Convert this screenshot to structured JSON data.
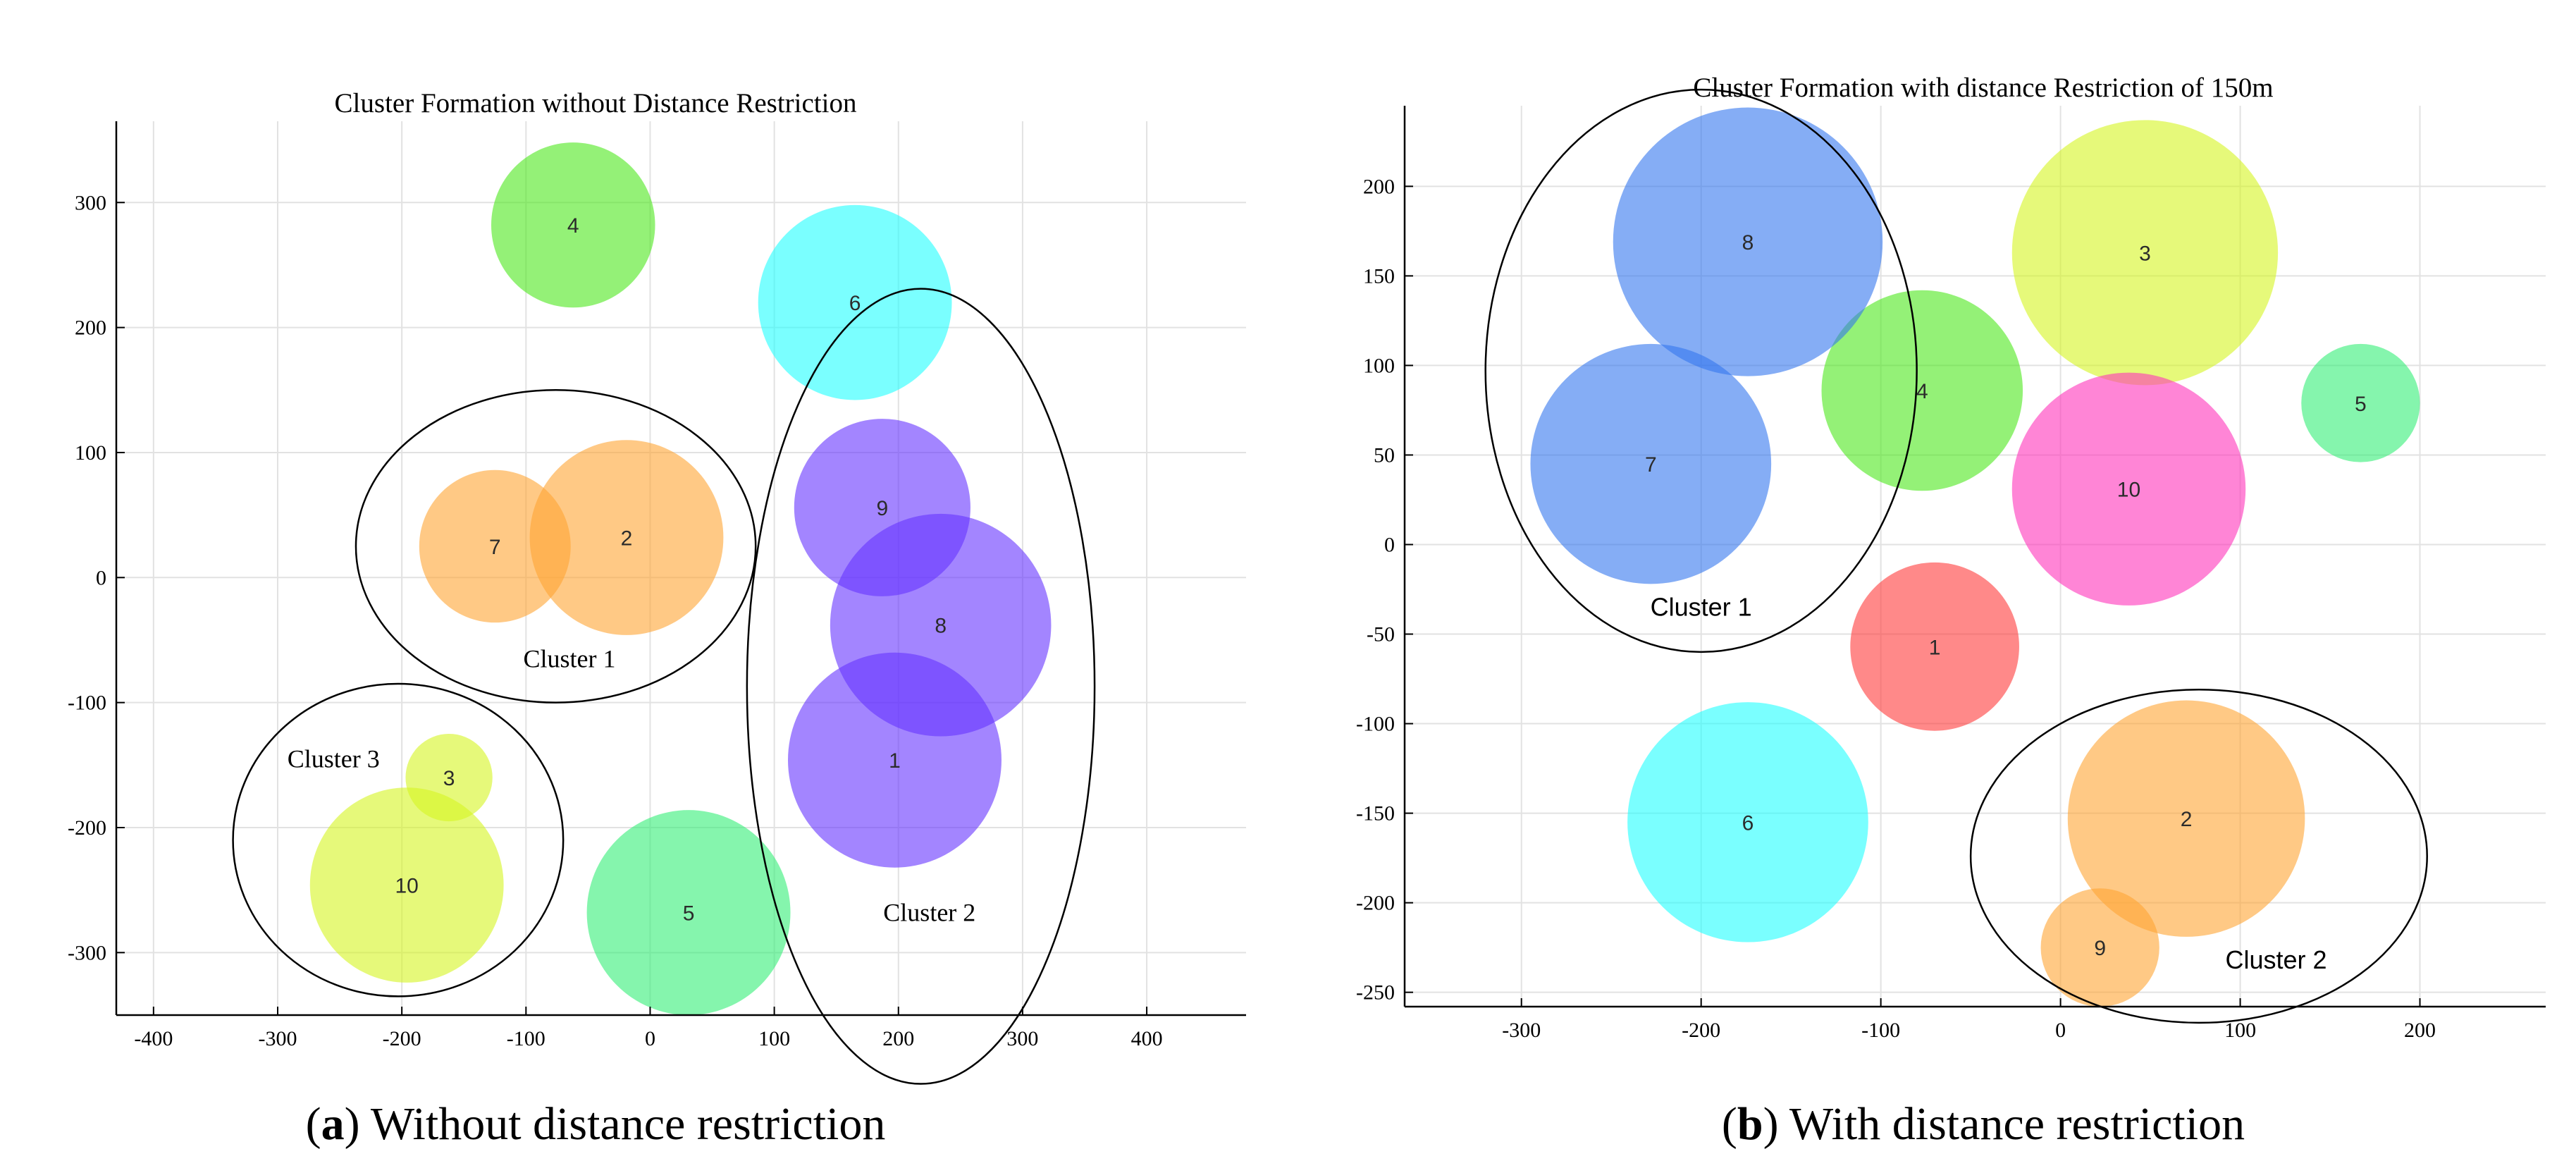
{
  "chart_data": [
    {
      "type": "scatter",
      "title": "Cluster Formation without Distance Restriction",
      "caption": {
        "letter": "a",
        "text": "Without distance restriction"
      },
      "xlim": [
        -430,
        480
      ],
      "ylim": [
        -350,
        365
      ],
      "xticks": [
        -400,
        -300,
        -200,
        -100,
        0,
        100,
        200,
        300,
        400
      ],
      "yticks": [
        -300,
        -200,
        -100,
        0,
        100,
        200,
        300
      ],
      "xticklabels": [
        "-400",
        "-300",
        "-200",
        "-100",
        "0",
        "100",
        "200",
        "300",
        "400"
      ],
      "yticklabels": [
        "-300",
        "-200",
        "-100",
        "0",
        "100",
        "200",
        "300"
      ],
      "grid": true,
      "nodes": [
        {
          "id": "1",
          "x": 197,
          "y": -146,
          "r": 86,
          "color": "#6633ff"
        },
        {
          "id": "2",
          "x": -19,
          "y": 32,
          "r": 78,
          "color": "#ffa533"
        },
        {
          "id": "3",
          "x": -162,
          "y": -160,
          "r": 35,
          "color": "#d5f522"
        },
        {
          "id": "4",
          "x": -62,
          "y": 282,
          "r": 66,
          "color": "#4de81c"
        },
        {
          "id": "5",
          "x": 31,
          "y": -268,
          "r": 82,
          "color": "#33ee77"
        },
        {
          "id": "6",
          "x": 165,
          "y": 220,
          "r": 78,
          "color": "#22ffff"
        },
        {
          "id": "7",
          "x": -125,
          "y": 25,
          "r": 61,
          "color": "#ffa533"
        },
        {
          "id": "8",
          "x": 234,
          "y": -38,
          "r": 89,
          "color": "#6633ff"
        },
        {
          "id": "9",
          "x": 187,
          "y": 56,
          "r": 71,
          "color": "#6633ff"
        },
        {
          "id": "10",
          "x": -196,
          "y": -246,
          "r": 78,
          "color": "#d5f522"
        }
      ],
      "clusters": [
        {
          "name": "Cluster 1",
          "cx": -76,
          "cy": 25,
          "rx": 161,
          "ry": 125,
          "label_x": -65,
          "label_y": -65
        },
        {
          "name": "Cluster 2",
          "cx": 218,
          "cy": -87,
          "rx": 140,
          "ry": 318,
          "label_x": 225,
          "label_y": -268
        },
        {
          "name": "Cluster 3",
          "cx": -203,
          "cy": -210,
          "rx": 133,
          "ry": 125,
          "label_x": -255,
          "label_y": -145
        }
      ]
    },
    {
      "type": "scatter",
      "title": "Cluster Formation with distance Restriction of 150m",
      "caption": {
        "letter": "b",
        "text": "With distance restriction"
      },
      "xlim": [
        -365,
        270
      ],
      "ylim": [
        -258,
        245
      ],
      "xticks": [
        -300,
        -200,
        -100,
        0,
        100,
        200
      ],
      "yticks": [
        -250,
        -200,
        -150,
        -100,
        -50,
        0,
        50,
        100,
        150,
        200
      ],
      "xticklabels": [
        "-300",
        "-200",
        "-100",
        "0",
        "100",
        "200"
      ],
      "yticklabels": [
        "-250",
        "-200",
        "-150",
        "-100",
        "-50",
        "0",
        "50",
        "100",
        "150",
        "200"
      ],
      "grid": true,
      "nodes": [
        {
          "id": "1",
          "x": -70,
          "y": -57,
          "r": 47,
          "color": "#ff3b3b"
        },
        {
          "id": "2",
          "x": 70,
          "y": -153,
          "r": 66,
          "color": "#ffa533"
        },
        {
          "id": "3",
          "x": 47,
          "y": 163,
          "r": 74,
          "color": "#d5f522"
        },
        {
          "id": "4",
          "x": -77,
          "y": 86,
          "r": 56,
          "color": "#4de81c"
        },
        {
          "id": "5",
          "x": 167,
          "y": 79,
          "r": 33,
          "color": "#33ee77"
        },
        {
          "id": "6",
          "x": -174,
          "y": -155,
          "r": 67,
          "color": "#22ffff"
        },
        {
          "id": "7",
          "x": -228,
          "y": 45,
          "r": 67,
          "color": "#3377ee"
        },
        {
          "id": "8",
          "x": -174,
          "y": 169,
          "r": 75,
          "color": "#3377ee"
        },
        {
          "id": "9",
          "x": 22,
          "y": -225,
          "r": 33,
          "color": "#ffa533"
        },
        {
          "id": "10",
          "x": 38,
          "y": 31,
          "r": 65,
          "color": "#ff33bb"
        }
      ],
      "clusters": [
        {
          "name": "Cluster 1",
          "cx": -200,
          "cy": 97,
          "rx": 120,
          "ry": 157,
          "label_x": -200,
          "label_y": -35
        },
        {
          "name": "Cluster 2",
          "cx": 77,
          "cy": -174,
          "rx": 127,
          "ry": 93,
          "label_x": 120,
          "label_y": -232
        }
      ]
    }
  ],
  "style": {
    "grid_color": "#e2e2e2",
    "axis_color": "#000000",
    "bubble_opacity": 0.6,
    "label_color": "#2b2b2b"
  }
}
